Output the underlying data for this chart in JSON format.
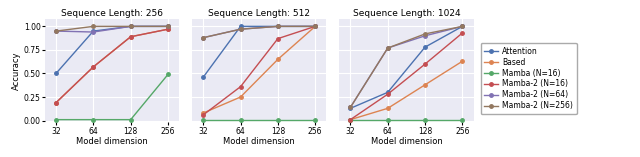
{
  "x": [
    32,
    64,
    128,
    256
  ],
  "titles": [
    "Sequence Length: 256",
    "Sequence Length: 512",
    "Sequence Length: 1024"
  ],
  "xlabel": "Model dimension",
  "ylabel": "Accuracy",
  "series": {
    "Attention": {
      "color": "#4c72b0",
      "marker": "o",
      "data": [
        [
          0.5,
          0.95,
          1.0,
          1.0
        ],
        [
          0.46,
          1.0,
          1.0,
          1.0
        ],
        [
          0.13,
          0.3,
          0.78,
          1.0
        ]
      ]
    },
    "Based": {
      "color": "#dd8452",
      "marker": "o",
      "data": [
        [
          0.19,
          0.57,
          0.89,
          0.97
        ],
        [
          0.08,
          0.25,
          0.65,
          1.0
        ],
        [
          0.01,
          0.13,
          0.38,
          0.63
        ]
      ]
    },
    "Mamba (N=16)": {
      "color": "#55a868",
      "marker": "o",
      "data": [
        [
          0.01,
          0.01,
          0.01,
          0.49
        ],
        [
          0.01,
          0.01,
          0.01,
          0.01
        ],
        [
          0.01,
          0.01,
          0.01,
          0.01
        ]
      ]
    },
    "Mamba-2 (N=16)": {
      "color": "#c44e52",
      "marker": "o",
      "data": [
        [
          0.19,
          0.57,
          0.89,
          0.97
        ],
        [
          0.06,
          0.36,
          0.87,
          1.0
        ],
        [
          0.01,
          0.28,
          0.6,
          0.93
        ]
      ]
    },
    "Mamba-2 (N=64)": {
      "color": "#8172b3",
      "marker": "o",
      "data": [
        [
          0.95,
          0.94,
          1.0,
          1.0
        ],
        [
          0.88,
          0.97,
          1.0,
          1.0
        ],
        [
          0.14,
          0.77,
          0.9,
          1.0
        ]
      ]
    },
    "Mamba-2 (N=256)": {
      "color": "#937860",
      "marker": "o",
      "data": [
        [
          0.95,
          1.0,
          1.0,
          1.0
        ],
        [
          0.88,
          0.97,
          1.0,
          1.0
        ],
        [
          0.14,
          0.77,
          0.92,
          1.0
        ]
      ]
    }
  },
  "ylim": [
    -0.02,
    1.08
  ],
  "yticks": [
    0.0,
    0.25,
    0.5,
    0.75,
    1.0
  ],
  "bg_color": "#eaeaf4",
  "grid_color": "white",
  "fig_bg": "#ffffff"
}
